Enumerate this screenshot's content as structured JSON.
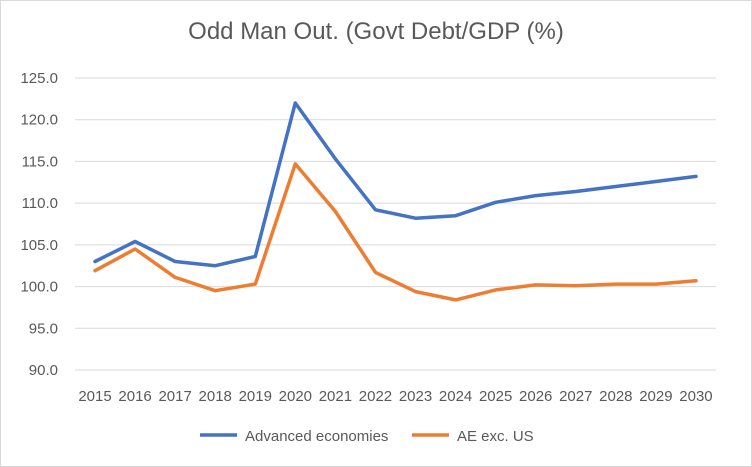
{
  "chart_data": {
    "type": "line",
    "title": "Odd Man Out. (Govt Debt/GDP (%)",
    "xlabel": "",
    "ylabel": "",
    "categories": [
      "2015",
      "2016",
      "2017",
      "2018",
      "2019",
      "2020",
      "2021",
      "2022",
      "2023",
      "2024",
      "2025",
      "2026",
      "2027",
      "2028",
      "2029",
      "2030"
    ],
    "ylim": [
      90,
      125
    ],
    "yticks": [
      "90.0",
      "95.0",
      "100.0",
      "105.0",
      "110.0",
      "115.0",
      "120.0",
      "125.0"
    ],
    "grid": true,
    "legend_position": "bottom",
    "series": [
      {
        "name": "Advanced economies",
        "color": "#4472c4",
        "values": [
          103.0,
          105.4,
          103.0,
          102.5,
          103.6,
          122.0,
          115.3,
          109.2,
          108.2,
          108.5,
          110.1,
          110.9,
          111.4,
          112.0,
          112.6,
          113.2
        ]
      },
      {
        "name": "AE exc. US",
        "color": "#ed7d31",
        "values": [
          101.9,
          104.5,
          101.1,
          99.5,
          100.3,
          114.7,
          109.0,
          101.7,
          99.4,
          98.4,
          99.6,
          100.2,
          100.1,
          100.3,
          100.3,
          100.7
        ]
      }
    ]
  }
}
